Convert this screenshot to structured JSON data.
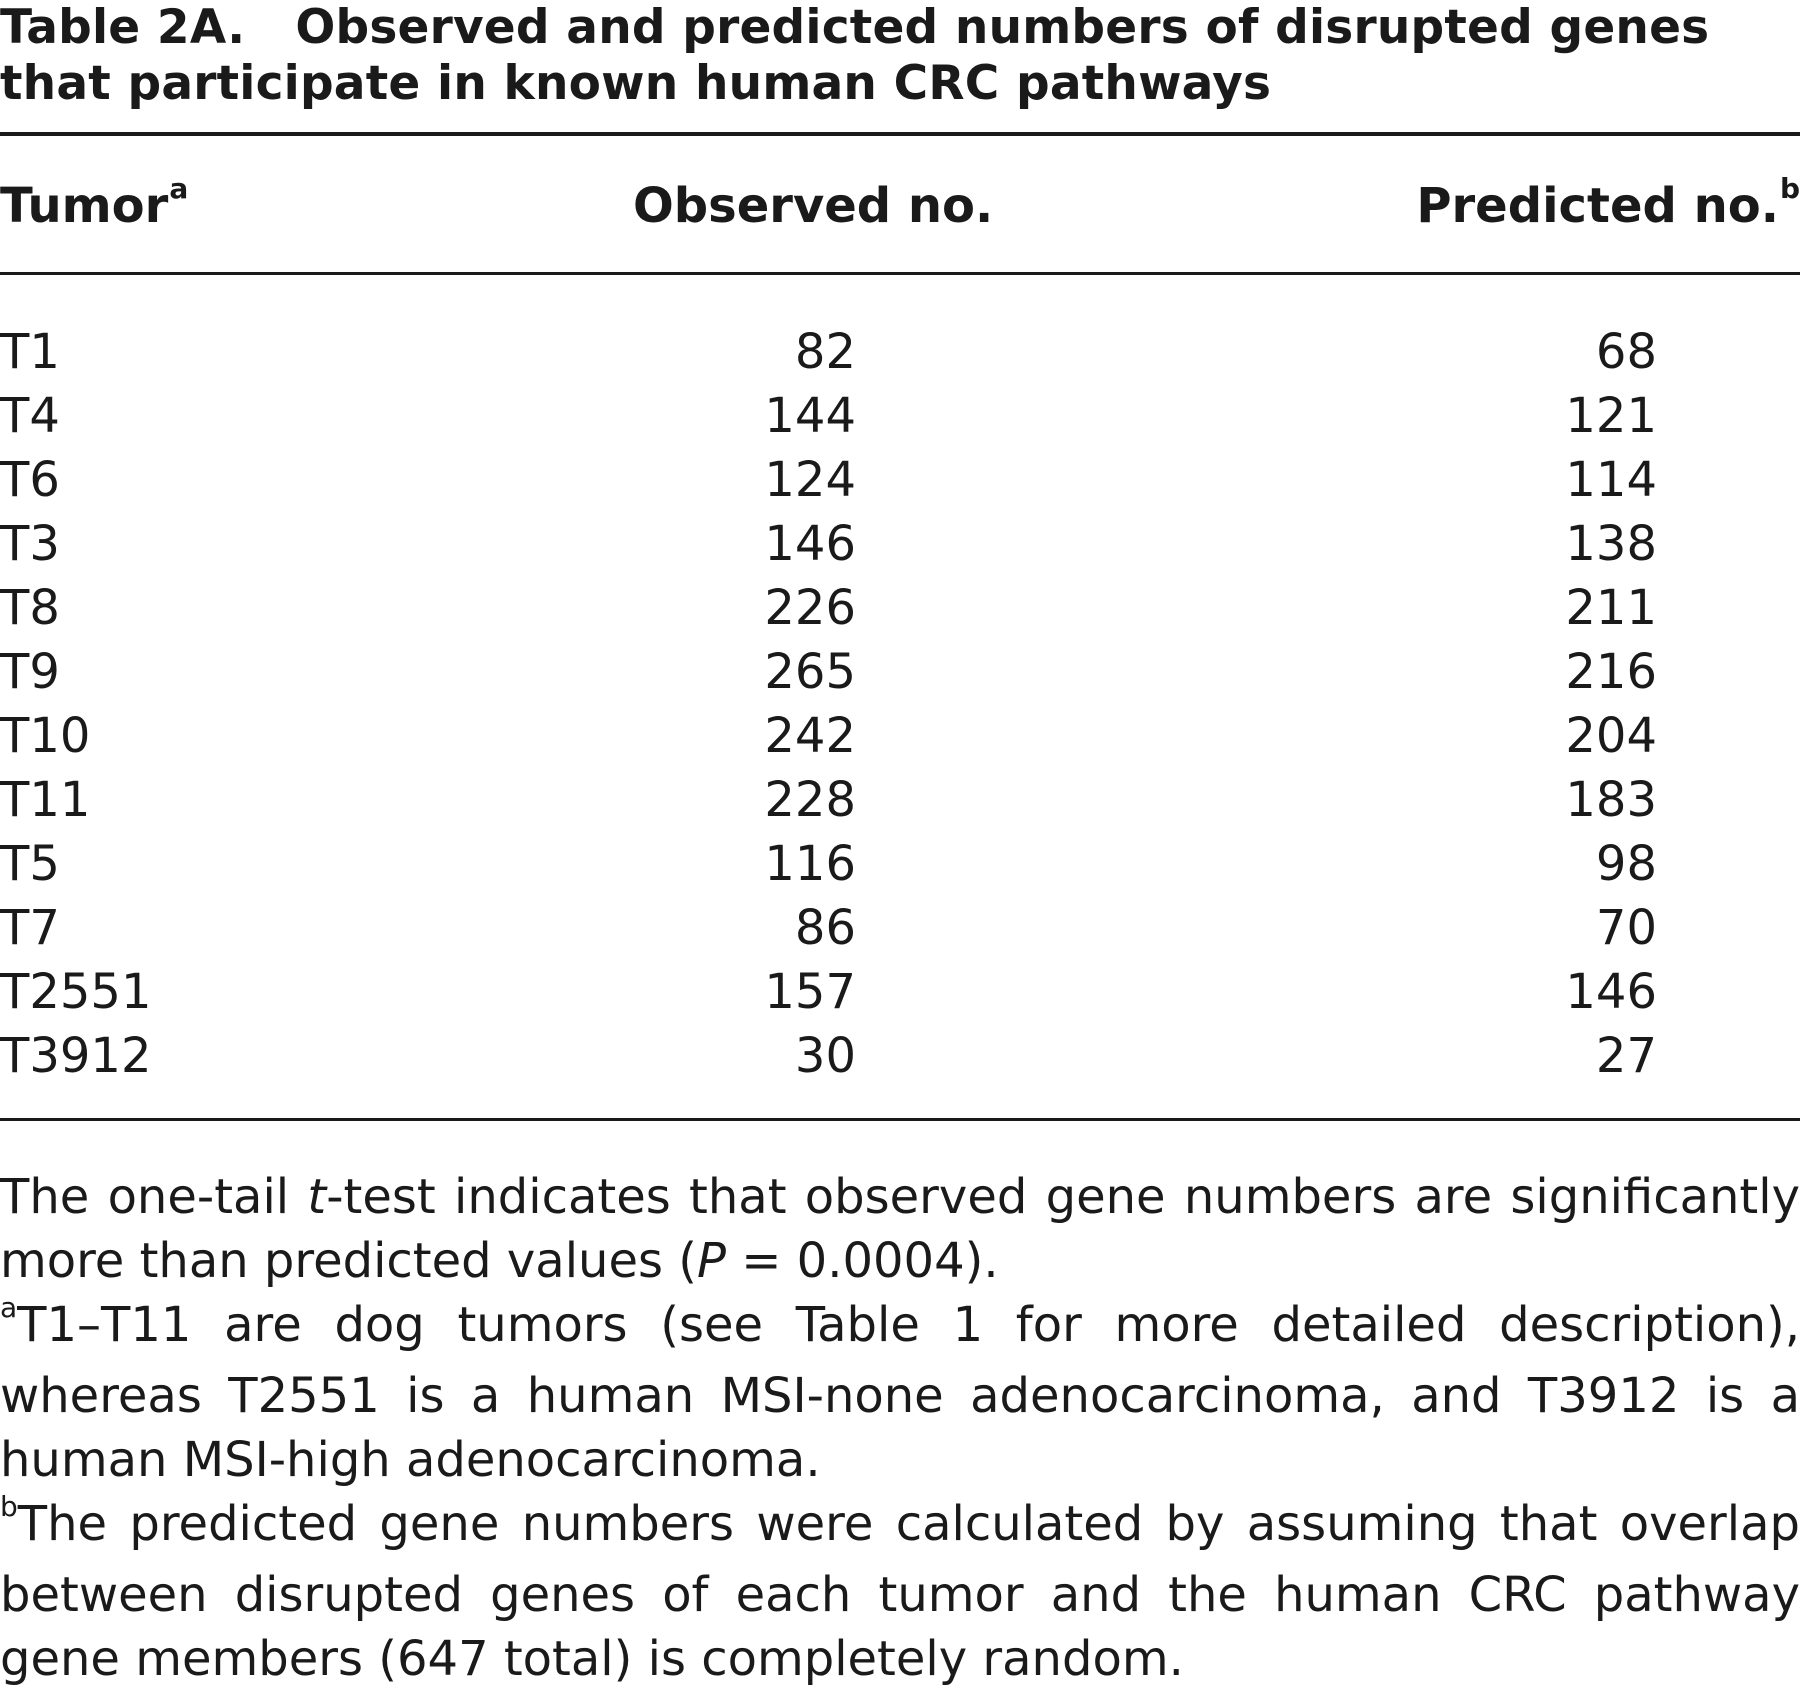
{
  "title": {
    "label": "Table 2A.",
    "line1": "Observed and predicted numbers of disrupted genes",
    "line2": "that participate in known human CRC pathways"
  },
  "columns": {
    "tumor": "Tumor",
    "tumor_footnote": "a",
    "observed": "Observed no.",
    "predicted": "Predicted no.",
    "predicted_footnote": "b"
  },
  "rows": [
    {
      "tumor": "T1",
      "observed": "82",
      "predicted": "68"
    },
    {
      "tumor": "T4",
      "observed": "144",
      "predicted": "121"
    },
    {
      "tumor": "T6",
      "observed": "124",
      "predicted": "114"
    },
    {
      "tumor": "T3",
      "observed": "146",
      "predicted": "138"
    },
    {
      "tumor": "T8",
      "observed": "226",
      "predicted": "211"
    },
    {
      "tumor": "T9",
      "observed": "265",
      "predicted": "216"
    },
    {
      "tumor": "T10",
      "observed": "242",
      "predicted": "204"
    },
    {
      "tumor": "T11",
      "observed": "228",
      "predicted": "183"
    },
    {
      "tumor": "T5",
      "observed": "116",
      "predicted": "98"
    },
    {
      "tumor": "T7",
      "observed": "86",
      "predicted": "70"
    },
    {
      "tumor": "T2551",
      "observed": "157",
      "predicted": "146"
    },
    {
      "tumor": "T3912",
      "observed": "30",
      "predicted": "27"
    }
  ],
  "notes": {
    "ttest": {
      "pre": "The one-tail ",
      "italic": "t",
      "mid": "-test indicates that observed gene numbers are significantly more than predicted values (",
      "p_italic": "P",
      "post": " = 0.0004)."
    },
    "a": {
      "marker": "a",
      "text": "T1–T11 are dog tumors (see Table 1 for more detailed description), whereas T2551 is a human MSI-none adenocarcinoma, and T3912 is a human MSI-high adenocarcinoma."
    },
    "b": {
      "marker": "b",
      "text": "The predicted gene numbers were calculated by assuming that overlap between disrupted genes of each tumor and the human CRC pathway gene members (647 total) is completely random."
    }
  }
}
